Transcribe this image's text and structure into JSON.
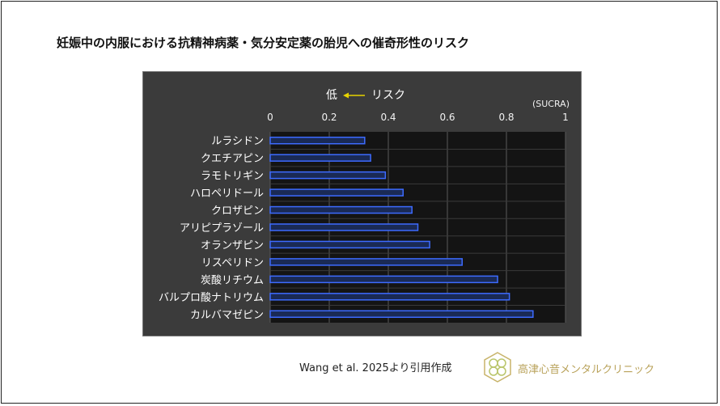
{
  "title": "妊娠中の内服における抗精神病薬・気分安定薬の胎児への催奇形性のリスク",
  "citation": "Wang et al. 2025より引用作成",
  "clinic": {
    "name": "高津心音メンタルクリニック"
  },
  "colors": {
    "panel": "#3b3b3b",
    "plot": "#141414",
    "bar_fill": "#1a2a55",
    "bar_stroke": "#3d6bff",
    "accent_arrow": "#e6d200"
  },
  "chart_data": {
    "type": "bar",
    "orientation": "horizontal",
    "title": "リスク",
    "low_label": "低",
    "unit_label": "(SUCRA)",
    "xlim": [
      0,
      1
    ],
    "xticks": [
      "0",
      "0.2",
      "0.4",
      "0.6",
      "0.8",
      "1"
    ],
    "tick_values": [
      0,
      0.2,
      0.4,
      0.6,
      0.8,
      1
    ],
    "grid": true,
    "categories": [
      "ルラシドン",
      "クエチアピン",
      "ラモトリギン",
      "ハロペリドール",
      "クロザピン",
      "アリピプラゾール",
      "オランザピン",
      "リスペリドン",
      "炭酸リチウム",
      "バルプロ酸ナトリウム",
      "カルバマゼピン"
    ],
    "values": [
      0.32,
      0.34,
      0.39,
      0.45,
      0.48,
      0.5,
      0.54,
      0.65,
      0.77,
      0.81,
      0.89
    ]
  }
}
